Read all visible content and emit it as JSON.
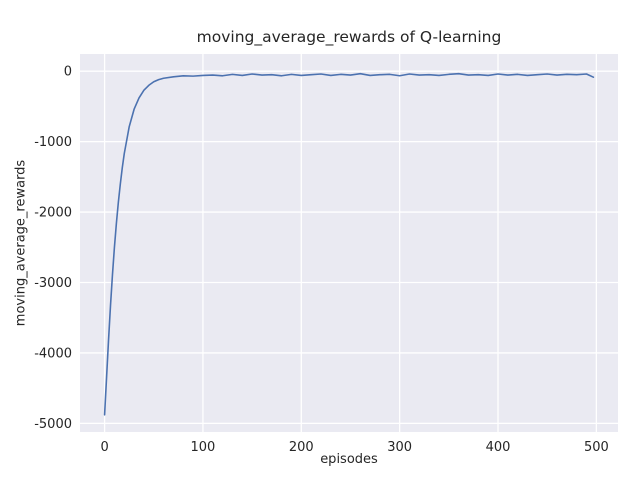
{
  "chart_data": {
    "type": "line",
    "title": "moving_average_rewards of Q-learning",
    "xlabel": "episodes",
    "ylabel": "moving_average_rewards",
    "xlim": [
      -25,
      522
    ],
    "ylim": [
      -5122,
      244
    ],
    "xticks": [
      0,
      100,
      200,
      300,
      400,
      500
    ],
    "yticks": [
      0,
      -1000,
      -2000,
      -3000,
      -4000,
      -5000
    ],
    "grid": true,
    "legend": "none",
    "series": [
      {
        "name": "moving_average_rewards",
        "x": [
          0,
          2,
          4,
          6,
          8,
          10,
          12,
          14,
          16,
          18,
          20,
          25,
          30,
          35,
          40,
          45,
          50,
          55,
          60,
          70,
          80,
          90,
          100,
          110,
          120,
          130,
          140,
          150,
          160,
          170,
          180,
          190,
          200,
          210,
          220,
          230,
          240,
          250,
          260,
          270,
          280,
          290,
          300,
          310,
          320,
          330,
          340,
          350,
          360,
          370,
          380,
          390,
          400,
          410,
          420,
          430,
          440,
          450,
          460,
          470,
          480,
          490,
          497
        ],
        "y": [
          -4878,
          -4350,
          -3820,
          -3330,
          -2890,
          -2500,
          -2160,
          -1860,
          -1600,
          -1370,
          -1170,
          -790,
          -540,
          -380,
          -270,
          -200,
          -150,
          -120,
          -100,
          -80,
          -65,
          -70,
          -60,
          -55,
          -65,
          -45,
          -60,
          -40,
          -55,
          -50,
          -65,
          -45,
          -60,
          -50,
          -40,
          -60,
          -45,
          -55,
          -35,
          -60,
          -50,
          -45,
          -65,
          -40,
          -55,
          -50,
          -60,
          -45,
          -35,
          -55,
          -50,
          -60,
          -40,
          -55,
          -45,
          -60,
          -50,
          -40,
          -55,
          -45,
          -50,
          -40,
          -85
        ]
      }
    ],
    "colors": {
      "line": "#4c72b0",
      "plot_background": "#eaeaf2",
      "grid": "#ffffff",
      "text": "#262626"
    }
  }
}
